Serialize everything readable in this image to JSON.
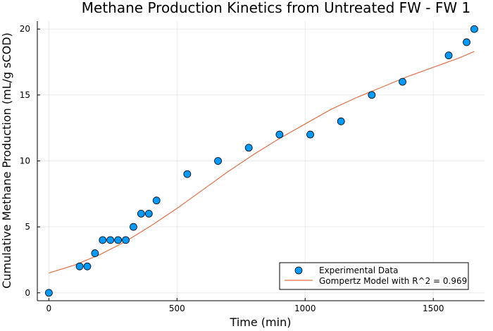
{
  "chart_data": {
    "type": "scatter",
    "title": "Methane Production Kinetics from Untreated FW - FW 1",
    "xlabel": "Time (min)",
    "ylabel": "Cumulative Methane Production (mL/g sCOD)",
    "xlim": [
      -45,
      1700
    ],
    "ylim": [
      -0.6,
      20.6
    ],
    "xticks": [
      0,
      500,
      1000,
      1500
    ],
    "yticks": [
      0,
      5,
      10,
      15,
      20
    ],
    "grid": true,
    "legend_position": "bottom-right",
    "series": [
      {
        "name": "Experimental Data",
        "kind": "scatter",
        "color": "#009AFA",
        "x": [
          0,
          120,
          150,
          180,
          210,
          240,
          270,
          300,
          330,
          360,
          390,
          420,
          540,
          660,
          780,
          900,
          1020,
          1140,
          1260,
          1380,
          1560,
          1630,
          1660
        ],
        "y": [
          0,
          2,
          2,
          3,
          4,
          4,
          4,
          4,
          5,
          6,
          6,
          7,
          9,
          10,
          11,
          12,
          12,
          13,
          15,
          16,
          18,
          19,
          20
        ]
      },
      {
        "name": "Gompertz Model with R^2 = 0.969",
        "kind": "line",
        "color": "#E26F46",
        "x": [
          0,
          100,
          200,
          300,
          400,
          500,
          600,
          700,
          800,
          900,
          1000,
          1100,
          1200,
          1300,
          1400,
          1500,
          1600,
          1660
        ],
        "y": [
          1.5,
          2.1,
          2.9,
          3.9,
          5.1,
          6.4,
          7.8,
          9.2,
          10.5,
          11.7,
          12.8,
          13.9,
          14.8,
          15.6,
          16.4,
          17.1,
          17.8,
          18.3
        ]
      }
    ]
  }
}
